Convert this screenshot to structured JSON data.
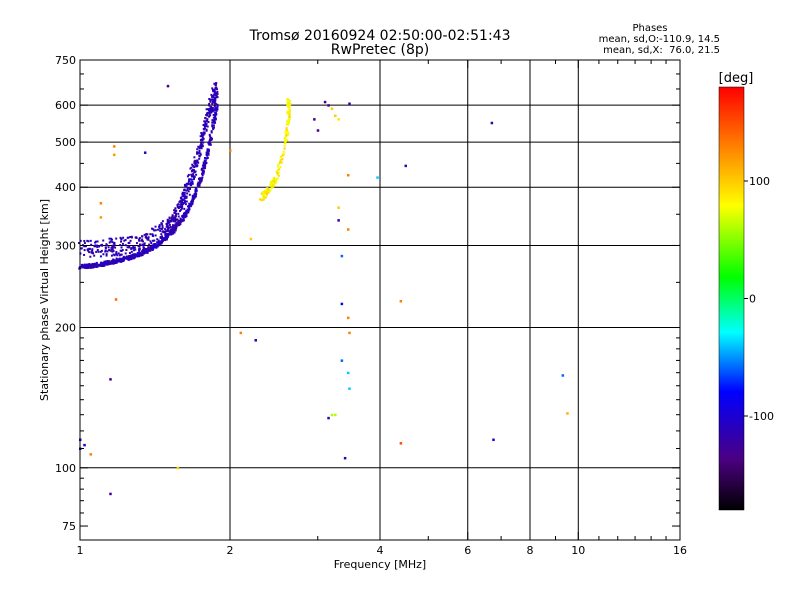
{
  "chart_data": {
    "type": "scatter",
    "title": "Tromsø 20160924 02:50:00-02:51:43",
    "subtitle": "RwPretec (8p)",
    "xlabel": "Frequency [MHz]",
    "ylabel": "Stationary phase Virtual Height [km]",
    "x_scale": "log",
    "y_scale": "log",
    "xlim": [
      1,
      16
    ],
    "ylim": [
      70,
      750
    ],
    "x_ticks": [
      1,
      2,
      4,
      6,
      8,
      10,
      16
    ],
    "x_tick_labels": [
      "1",
      "2",
      "4",
      "6",
      "8",
      "10",
      "16"
    ],
    "x_minor_ticks": [
      3,
      5,
      7,
      9,
      11,
      12,
      13,
      14,
      15
    ],
    "y_ticks": [
      75,
      100,
      200,
      300,
      400,
      500,
      600,
      750
    ],
    "y_tick_labels": [
      "75",
      "100",
      "200",
      "300",
      "400",
      "500",
      "600",
      "750"
    ],
    "y_minor_ticks": [
      80,
      85,
      90,
      95,
      110,
      120,
      130,
      140,
      150,
      160,
      170,
      180,
      190,
      250,
      350,
      450,
      550,
      650,
      700
    ],
    "grid": true,
    "grid_x": [
      2,
      4,
      6,
      8,
      10
    ],
    "grid_y": [
      100,
      200,
      300,
      400,
      500,
      600
    ],
    "phase_info": {
      "heading": "Phases",
      "line1": "mean, sd,O:-110.9, 14.5",
      "line2": "mean, sd,X:  76.0, 21.5"
    },
    "colorbar": {
      "label": "[deg]",
      "range": [
        -180,
        180
      ],
      "ticks": [
        100,
        0,
        -100
      ],
      "tick_labels": [
        "100",
        "0",
        "-100"
      ]
    },
    "o_trace_low": [
      [
        1.0,
        270
      ],
      [
        1.05,
        271
      ],
      [
        1.1,
        273
      ],
      [
        1.15,
        276
      ],
      [
        1.2,
        279
      ],
      [
        1.25,
        282
      ],
      [
        1.3,
        286
      ],
      [
        1.35,
        291
      ],
      [
        1.4,
        297
      ],
      [
        1.45,
        305
      ],
      [
        1.5,
        314
      ],
      [
        1.55,
        326
      ],
      [
        1.6,
        340
      ],
      [
        1.65,
        360
      ],
      [
        1.7,
        385
      ],
      [
        1.75,
        420
      ],
      [
        1.8,
        470
      ],
      [
        1.85,
        540
      ],
      [
        1.88,
        600
      ]
    ],
    "o_trace_high": [
      [
        1.0,
        295
      ],
      [
        1.1,
        296
      ],
      [
        1.2,
        298
      ],
      [
        1.3,
        303
      ],
      [
        1.4,
        312
      ],
      [
        1.5,
        330
      ],
      [
        1.55,
        345
      ],
      [
        1.6,
        370
      ],
      [
        1.65,
        400
      ],
      [
        1.7,
        440
      ],
      [
        1.75,
        500
      ],
      [
        1.8,
        560
      ],
      [
        1.85,
        620
      ],
      [
        1.88,
        650
      ]
    ],
    "x_trace": [
      [
        2.3,
        380
      ],
      [
        2.35,
        385
      ],
      [
        2.4,
        395
      ],
      [
        2.45,
        410
      ],
      [
        2.5,
        430
      ],
      [
        2.55,
        470
      ],
      [
        2.6,
        520
      ],
      [
        2.62,
        560
      ],
      [
        2.63,
        600
      ],
      [
        2.62,
        610
      ]
    ],
    "scatter_points": [
      {
        "x": 1.0,
        "y": 115,
        "phase": -110
      },
      {
        "x": 1.0,
        "y": 110,
        "phase": -110
      },
      {
        "x": 1.02,
        "y": 112,
        "phase": -110
      },
      {
        "x": 1.05,
        "y": 107,
        "phase": 130
      },
      {
        "x": 1.1,
        "y": 370,
        "phase": 130
      },
      {
        "x": 1.1,
        "y": 345,
        "phase": 120
      },
      {
        "x": 1.15,
        "y": 88,
        "phase": -130
      },
      {
        "x": 1.15,
        "y": 155,
        "phase": -130
      },
      {
        "x": 1.17,
        "y": 490,
        "phase": 130
      },
      {
        "x": 1.17,
        "y": 470,
        "phase": 120
      },
      {
        "x": 1.18,
        "y": 230,
        "phase": 140
      },
      {
        "x": 1.35,
        "y": 475,
        "phase": -110
      },
      {
        "x": 1.5,
        "y": 660,
        "phase": -130
      },
      {
        "x": 1.57,
        "y": 100,
        "phase": 100
      },
      {
        "x": 2.0,
        "y": 480,
        "phase": 130
      },
      {
        "x": 2.1,
        "y": 195,
        "phase": 130
      },
      {
        "x": 2.2,
        "y": 310,
        "phase": 100
      },
      {
        "x": 2.25,
        "y": 188,
        "phase": -110
      },
      {
        "x": 2.95,
        "y": 560,
        "phase": -130
      },
      {
        "x": 3.0,
        "y": 530,
        "phase": -130
      },
      {
        "x": 3.1,
        "y": 610,
        "phase": -130
      },
      {
        "x": 3.15,
        "y": 600,
        "phase": -130
      },
      {
        "x": 3.2,
        "y": 590,
        "phase": 100
      },
      {
        "x": 3.25,
        "y": 570,
        "phase": 100
      },
      {
        "x": 3.3,
        "y": 560,
        "phase": 90
      },
      {
        "x": 3.15,
        "y": 128,
        "phase": -120
      },
      {
        "x": 3.2,
        "y": 130,
        "phase": 60
      },
      {
        "x": 3.25,
        "y": 130,
        "phase": 60
      },
      {
        "x": 3.3,
        "y": 362,
        "phase": 100
      },
      {
        "x": 3.3,
        "y": 340,
        "phase": -120
      },
      {
        "x": 3.35,
        "y": 285,
        "phase": -60
      },
      {
        "x": 3.35,
        "y": 225,
        "phase": -80
      },
      {
        "x": 3.35,
        "y": 170,
        "phase": -60
      },
      {
        "x": 3.4,
        "y": 105,
        "phase": -120
      },
      {
        "x": 3.45,
        "y": 425,
        "phase": 130
      },
      {
        "x": 3.45,
        "y": 325,
        "phase": 130
      },
      {
        "x": 3.45,
        "y": 210,
        "phase": 130
      },
      {
        "x": 3.47,
        "y": 195,
        "phase": 130
      },
      {
        "x": 3.45,
        "y": 160,
        "phase": -40
      },
      {
        "x": 3.47,
        "y": 148,
        "phase": -40
      },
      {
        "x": 3.47,
        "y": 605,
        "phase": -120
      },
      {
        "x": 3.95,
        "y": 420,
        "phase": -40
      },
      {
        "x": 4.4,
        "y": 228,
        "phase": 130
      },
      {
        "x": 4.4,
        "y": 113,
        "phase": 150
      },
      {
        "x": 4.5,
        "y": 445,
        "phase": -120
      },
      {
        "x": 6.7,
        "y": 550,
        "phase": -120
      },
      {
        "x": 6.75,
        "y": 115,
        "phase": -100
      },
      {
        "x": 9.3,
        "y": 158,
        "phase": -60
      },
      {
        "x": 9.5,
        "y": 131,
        "phase": 110
      }
    ]
  }
}
